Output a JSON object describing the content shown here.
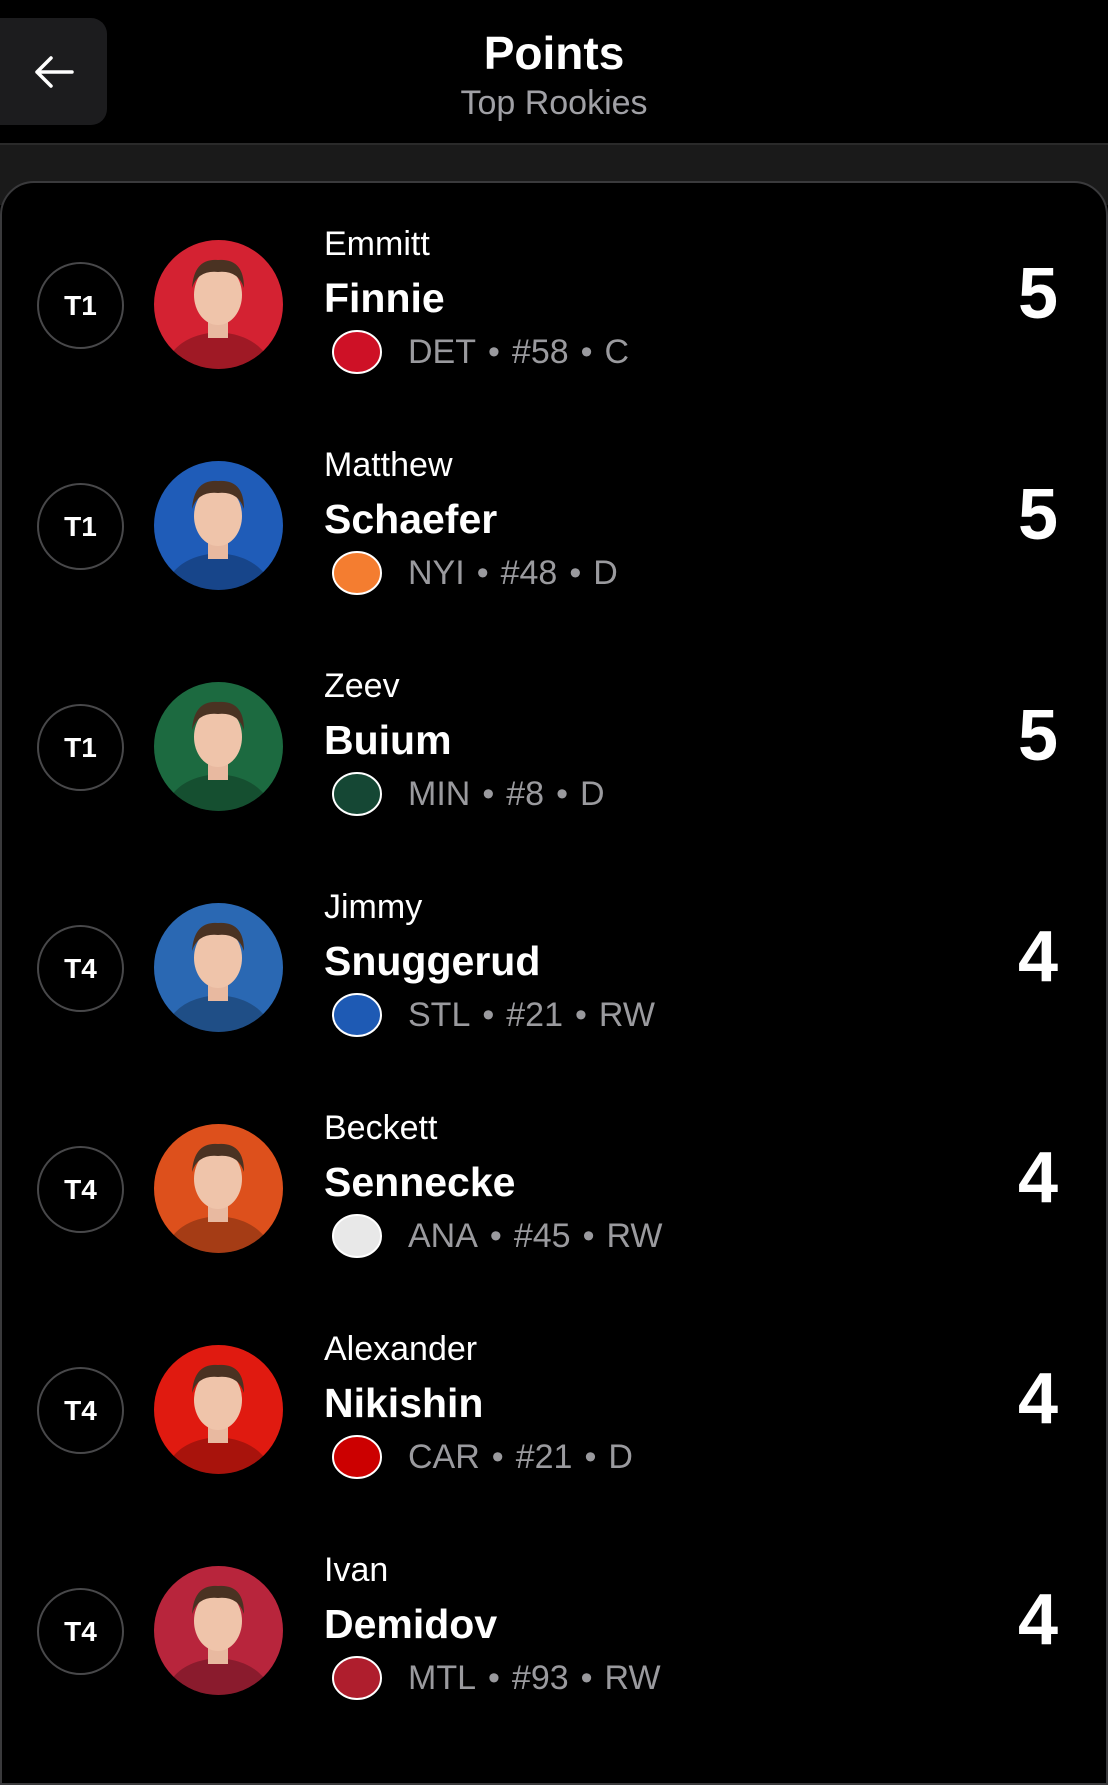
{
  "header": {
    "title": "Points",
    "subtitle": "Top Rookies",
    "back_icon": "arrow-left-icon"
  },
  "players": [
    {
      "rank": "T1",
      "first": "Emmitt",
      "last": "Finnie",
      "team": "DET",
      "number": "#58",
      "position": "C",
      "points": "5",
      "color": "#d42232",
      "logo_color": "#ce1126"
    },
    {
      "rank": "T1",
      "first": "Matthew",
      "last": "Schaefer",
      "team": "NYI",
      "number": "#48",
      "position": "D",
      "points": "5",
      "color": "#1f5cb8",
      "logo_color": "#f47d30"
    },
    {
      "rank": "T1",
      "first": "Zeev",
      "last": "Buium",
      "team": "MIN",
      "number": "#8",
      "position": "D",
      "points": "5",
      "color": "#1c6a40",
      "logo_color": "#154734"
    },
    {
      "rank": "T4",
      "first": "Jimmy",
      "last": "Snuggerud",
      "team": "STL",
      "number": "#21",
      "position": "RW",
      "points": "4",
      "color": "#2a68b3",
      "logo_color": "#1e5ab4"
    },
    {
      "rank": "T4",
      "first": "Beckett",
      "last": "Sennecke",
      "team": "ANA",
      "number": "#45",
      "position": "RW",
      "points": "4",
      "color": "#dd501c",
      "logo_color": "#e8e8e8"
    },
    {
      "rank": "T4",
      "first": "Alexander",
      "last": "Nikishin",
      "team": "CAR",
      "number": "#21",
      "position": "D",
      "points": "4",
      "color": "#e01a10",
      "logo_color": "#cc0000"
    },
    {
      "rank": "T4",
      "first": "Ivan",
      "last": "Demidov",
      "team": "MTL",
      "number": "#93",
      "position": "RW",
      "points": "4",
      "color": "#b8253c",
      "logo_color": "#af1e2d"
    }
  ]
}
